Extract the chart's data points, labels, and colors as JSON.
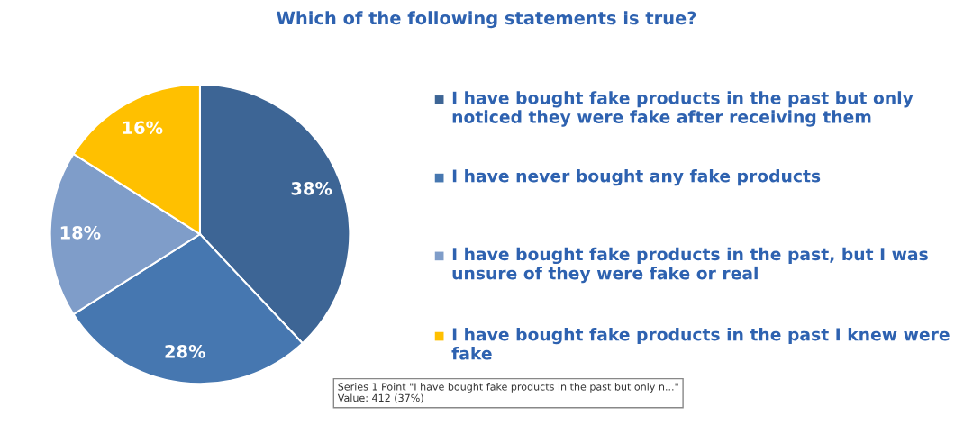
{
  "chart_data": {
    "type": "pie",
    "title": "Which of the following statements is true?",
    "categories": [
      "I have bought fake products in the past but only noticed they were fake after receiving them",
      "I have never bought any fake products",
      "I have bought fake products in the past, but I was unsure of they were fake or real",
      "I have bought fake products in the past I knew were fake"
    ],
    "values": [
      38,
      28,
      18,
      16
    ],
    "colors": [
      "#3d6595",
      "#4677b0",
      "#7f9dc9",
      "#ffc000"
    ],
    "value_labels": [
      "38%",
      "28%",
      "18%",
      "16%"
    ],
    "legend": "right",
    "annotations": [
      "Series 1 Point \"I have bought fake products in the past but only n...\"\nValue: 412 (37%)"
    ]
  }
}
